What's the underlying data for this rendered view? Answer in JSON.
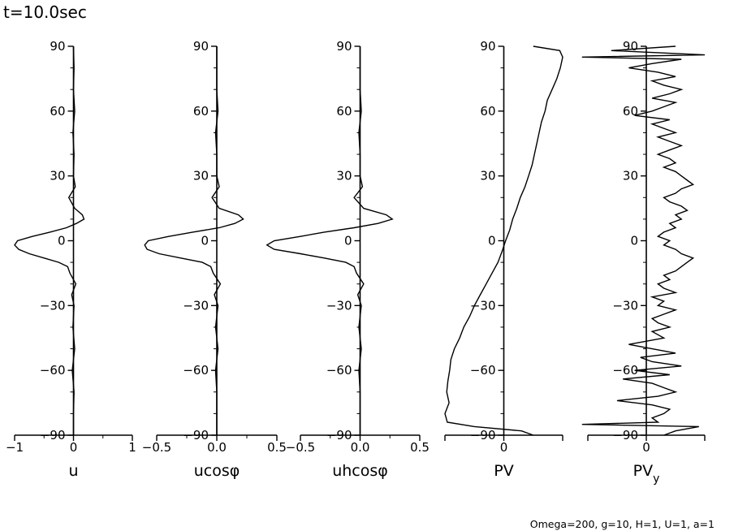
{
  "title": "t=10.0sec",
  "footer": "Omega=200, g=10, H=1, U=1, a=1",
  "chart_data": [
    {
      "type": "line",
      "xlabel": "u",
      "x_ticks": [
        "−1",
        "0",
        "1"
      ],
      "xlim": [
        -1,
        1
      ],
      "y_ticks": [
        "90",
        "60",
        "30",
        "0",
        "−30",
        "−60",
        "−90"
      ],
      "ylim": [
        -90,
        90
      ],
      "series": [
        {
          "lat": [
            -90,
            -80,
            -70,
            -60,
            -50,
            -40,
            -30,
            -25,
            -20,
            -15,
            -12,
            -10,
            -8,
            -6,
            -4,
            -2,
            0,
            2,
            4,
            6,
            8,
            10,
            12,
            15,
            20,
            25,
            30,
            40,
            50,
            60,
            70,
            80,
            90
          ],
          "values": [
            0,
            0,
            0.01,
            -0.02,
            0.02,
            -0.01,
            0.01,
            -0.03,
            0.04,
            -0.06,
            -0.1,
            -0.25,
            -0.5,
            -0.75,
            -0.93,
            -1.0,
            -0.95,
            -0.7,
            -0.4,
            -0.12,
            0.05,
            0.18,
            0.15,
            0.02,
            -0.08,
            0.03,
            0,
            0.01,
            -0.01,
            0.02,
            0,
            0.01,
            0
          ]
        }
      ]
    },
    {
      "type": "line",
      "xlabel": "ucosφ",
      "x_ticks": [
        "−0.5",
        "0.0",
        "0.5"
      ],
      "xlim": [
        -0.5,
        0.5
      ],
      "y_ticks": [
        "90",
        "60",
        "30",
        "0",
        "−30",
        "−60",
        "−90"
      ],
      "ylim": [
        -90,
        90
      ],
      "series": [
        {
          "lat": [
            -90,
            -80,
            -70,
            -60,
            -50,
            -40,
            -30,
            -25,
            -20,
            -15,
            -12,
            -10,
            -8,
            -6,
            -4,
            -2,
            0,
            2,
            4,
            6,
            8,
            10,
            12,
            15,
            20,
            25,
            30,
            40,
            50,
            60,
            70,
            80,
            90
          ],
          "values": [
            0,
            0,
            0,
            -0.01,
            0.01,
            -0.01,
            0.01,
            -0.02,
            0.03,
            -0.03,
            -0.05,
            -0.12,
            -0.3,
            -0.48,
            -0.58,
            -0.6,
            -0.57,
            -0.4,
            -0.2,
            0.02,
            0.15,
            0.22,
            0.18,
            0.02,
            -0.04,
            0.02,
            0,
            0,
            -0.01,
            0.01,
            0,
            0,
            0
          ]
        }
      ]
    },
    {
      "type": "line",
      "xlabel": "uhcosφ",
      "x_ticks": [
        "−0.5",
        "0.0",
        "0.5"
      ],
      "xlim": [
        -0.5,
        0.5
      ],
      "y_ticks": [
        "90",
        "60",
        "30",
        "0",
        "−30",
        "−60",
        "−90"
      ],
      "ylim": [
        -90,
        90
      ],
      "series": [
        {
          "lat": [
            -90,
            -80,
            -70,
            -60,
            -50,
            -40,
            -30,
            -25,
            -20,
            -15,
            -12,
            -10,
            -8,
            -6,
            -4,
            -2,
            0,
            2,
            4,
            6,
            8,
            10,
            12,
            15,
            20,
            25,
            30,
            40,
            50,
            60,
            70,
            80,
            90
          ],
          "values": [
            0,
            0,
            0,
            -0.01,
            0.01,
            -0.01,
            0.01,
            -0.02,
            0.03,
            -0.03,
            -0.05,
            -0.12,
            -0.3,
            -0.5,
            -0.72,
            -0.78,
            -0.72,
            -0.5,
            -0.3,
            -0.05,
            0.15,
            0.27,
            0.22,
            0.03,
            -0.05,
            0.02,
            0,
            0,
            -0.01,
            0.01,
            0,
            0,
            0
          ]
        }
      ]
    },
    {
      "type": "line",
      "xlabel": "PV",
      "x_ticks": [
        "0"
      ],
      "xlim": [
        -1,
        1
      ],
      "y_ticks": [
        "90",
        "60",
        "30",
        "0",
        "−30",
        "−60",
        "−90"
      ],
      "ylim": [
        -90,
        90
      ],
      "series": [
        {
          "lat": [
            -90,
            -88,
            -86,
            -84,
            -80,
            -75,
            -70,
            -65,
            -60,
            -55,
            -50,
            -45,
            -40,
            -35,
            -30,
            -25,
            -20,
            -15,
            -10,
            -5,
            0,
            5,
            10,
            15,
            20,
            25,
            30,
            35,
            40,
            45,
            50,
            55,
            60,
            65,
            70,
            75,
            80,
            85,
            88,
            90
          ],
          "values": [
            0.5,
            0.3,
            -0.5,
            -0.96,
            -1.0,
            -0.93,
            -0.97,
            -0.95,
            -0.92,
            -0.9,
            -0.84,
            -0.75,
            -0.68,
            -0.58,
            -0.5,
            -0.4,
            -0.3,
            -0.2,
            -0.1,
            -0.03,
            0.03,
            0.1,
            0.15,
            0.22,
            0.28,
            0.36,
            0.42,
            0.48,
            0.52,
            0.56,
            0.6,
            0.64,
            0.7,
            0.74,
            0.82,
            0.9,
            0.96,
            1.0,
            0.95,
            0.5
          ]
        }
      ]
    },
    {
      "type": "line",
      "xlabel": "PV",
      "xlabel_sub": "y",
      "x_ticks": [
        "0"
      ],
      "xlim": [
        -1,
        1
      ],
      "y_ticks": [
        "90",
        "60",
        "30",
        "0",
        "−30",
        "−60",
        "−90"
      ],
      "ylim": [
        -90,
        90
      ],
      "series": [
        {
          "lat": [
            -90,
            -88,
            -86,
            -85,
            -84,
            -82,
            -80,
            -78,
            -76,
            -74,
            -72,
            -70,
            -68,
            -66,
            -64,
            -62,
            -60,
            -58,
            -56,
            -54,
            -52,
            -50,
            -48,
            -45,
            -42,
            -40,
            -38,
            -36,
            -34,
            -32,
            -30,
            -28,
            -26,
            -24,
            -22,
            -20,
            -18,
            -16,
            -14,
            -12,
            -10,
            -8,
            -6,
            -4,
            -2,
            0,
            2,
            4,
            6,
            8,
            10,
            12,
            14,
            16,
            18,
            20,
            22,
            24,
            26,
            28,
            30,
            32,
            34,
            36,
            38,
            40,
            42,
            44,
            46,
            48,
            50,
            52,
            54,
            56,
            58,
            60,
            62,
            64,
            66,
            68,
            70,
            72,
            74,
            76,
            78,
            80,
            82,
            84,
            85,
            86,
            88,
            90
          ],
          "values": [
            0.3,
            0.5,
            0.9,
            -1.1,
            0.2,
            0.1,
            0.3,
            0.4,
            0.1,
            -0.5,
            0.2,
            0.5,
            0.3,
            0.1,
            -0.4,
            0.4,
            -0.2,
            0.6,
            0.1,
            -0.1,
            0.5,
            0.1,
            -0.3,
            0.3,
            0.1,
            0.4,
            0.2,
            0.1,
            0.3,
            0.5,
            0.2,
            0.3,
            0.1,
            0.5,
            0.3,
            0.2,
            0.4,
            0.3,
            0.5,
            0.6,
            0.7,
            0.8,
            0.6,
            0.5,
            0.3,
            0.4,
            0.2,
            0.3,
            0.5,
            0.4,
            0.6,
            0.5,
            0.7,
            0.6,
            0.4,
            0.3,
            0.5,
            0.6,
            0.8,
            0.7,
            0.6,
            0.5,
            0.3,
            0.5,
            0.4,
            0.2,
            0.4,
            0.6,
            0.4,
            0.2,
            0.5,
            0.3,
            0.1,
            0.4,
            -0.2,
            0.1,
            0.3,
            0.5,
            0.1,
            0.4,
            0.6,
            0.3,
            0.1,
            0.5,
            0.2,
            -0.3,
            0.1,
            0.6,
            -1.1,
            1.0,
            -0.6,
            0.5
          ]
        }
      ]
    }
  ]
}
